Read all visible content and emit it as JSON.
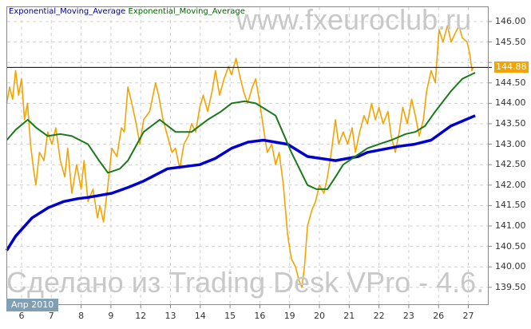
{
  "chart_data": {
    "type": "line",
    "title": "",
    "legend": [
      {
        "label": "Exponential_Moving_Average",
        "color": "#000080"
      },
      {
        "label": "Exponential_Moving_Average",
        "color": "#006400"
      }
    ],
    "watermarks": [
      "www.fxeuroclub.ru",
      "Сделано из Trading Desk VPro - 4.6."
    ],
    "month_label": "Апр 2010",
    "x_ticks": [
      "6",
      "7",
      "8",
      "9",
      "12",
      "13",
      "14",
      "15",
      "16",
      "19",
      "20",
      "21",
      "22",
      "23",
      "26",
      "27"
    ],
    "y_ticks": [
      "146.00",
      "145.50",
      "145.00",
      "144.50",
      "144.00",
      "143.50",
      "143.00",
      "142.50",
      "142.00",
      "141.50",
      "141.00",
      "140.50",
      "140.00",
      "139.50"
    ],
    "ylim": [
      139.13,
      146.37
    ],
    "xlim": [
      -0.51,
      15.7
    ],
    "last_price": "144.88",
    "colors": {
      "price": "#f5a300",
      "ema_slow": "#0000cc",
      "ema_fast": "#1a7a1a",
      "last_line": "#000000"
    },
    "series": [
      {
        "name": "Price",
        "points": [
          [
            -0.5,
            144.0
          ],
          [
            -0.4,
            144.4
          ],
          [
            -0.3,
            144.1
          ],
          [
            -0.2,
            144.8
          ],
          [
            -0.1,
            144.2
          ],
          [
            0.0,
            144.6
          ],
          [
            0.1,
            143.6
          ],
          [
            0.2,
            144.0
          ],
          [
            0.3,
            143.0
          ],
          [
            0.4,
            142.4
          ],
          [
            0.48,
            142.0
          ],
          [
            0.6,
            142.8
          ],
          [
            0.75,
            142.6
          ],
          [
            0.88,
            143.3
          ],
          [
            1.02,
            143.0
          ],
          [
            1.15,
            143.4
          ],
          [
            1.3,
            142.6
          ],
          [
            1.45,
            142.2
          ],
          [
            1.55,
            142.9
          ],
          [
            1.69,
            141.8
          ],
          [
            1.85,
            142.5
          ],
          [
            2.0,
            141.9
          ],
          [
            2.1,
            142.6
          ],
          [
            2.23,
            141.6
          ],
          [
            2.4,
            141.9
          ],
          [
            2.55,
            141.2
          ],
          [
            2.63,
            141.5
          ],
          [
            2.75,
            141.1
          ],
          [
            2.9,
            142.0
          ],
          [
            3.03,
            142.9
          ],
          [
            3.2,
            142.7
          ],
          [
            3.35,
            143.4
          ],
          [
            3.45,
            143.3
          ],
          [
            3.57,
            144.4
          ],
          [
            3.7,
            144.0
          ],
          [
            3.85,
            143.5
          ],
          [
            3.97,
            143.0
          ],
          [
            4.1,
            143.6
          ],
          [
            4.3,
            143.8
          ],
          [
            4.5,
            144.5
          ],
          [
            4.6,
            144.2
          ],
          [
            4.75,
            143.6
          ],
          [
            4.9,
            143.2
          ],
          [
            5.05,
            142.8
          ],
          [
            5.17,
            142.9
          ],
          [
            5.31,
            142.4
          ],
          [
            5.45,
            143.0
          ],
          [
            5.6,
            143.2
          ],
          [
            5.71,
            143.5
          ],
          [
            5.85,
            143.3
          ],
          [
            5.98,
            143.9
          ],
          [
            6.1,
            144.2
          ],
          [
            6.25,
            143.8
          ],
          [
            6.4,
            144.3
          ],
          [
            6.51,
            144.8
          ],
          [
            6.65,
            144.2
          ],
          [
            6.8,
            144.6
          ],
          [
            6.95,
            144.9
          ],
          [
            7.05,
            144.7
          ],
          [
            7.2,
            145.1
          ],
          [
            7.32,
            144.7
          ],
          [
            7.45,
            144.3
          ],
          [
            7.59,
            144.0
          ],
          [
            7.75,
            144.4
          ],
          [
            7.86,
            144.6
          ],
          [
            8.0,
            144.0
          ],
          [
            8.12,
            143.4
          ],
          [
            8.25,
            142.8
          ],
          [
            8.4,
            143.0
          ],
          [
            8.53,
            142.5
          ],
          [
            8.65,
            142.8
          ],
          [
            8.79,
            142.0
          ],
          [
            8.93,
            140.8
          ],
          [
            9.06,
            140.2
          ],
          [
            9.2,
            140.0
          ],
          [
            9.3,
            139.7
          ],
          [
            9.41,
            139.5
          ],
          [
            9.5,
            140.0
          ],
          [
            9.6,
            141.0
          ],
          [
            9.75,
            141.4
          ],
          [
            9.87,
            141.6
          ],
          [
            10.0,
            142.0
          ],
          [
            10.15,
            141.8
          ],
          [
            10.27,
            142.2
          ],
          [
            10.4,
            142.8
          ],
          [
            10.54,
            143.6
          ],
          [
            10.65,
            143.0
          ],
          [
            10.8,
            143.3
          ],
          [
            10.95,
            143.0
          ],
          [
            11.1,
            143.4
          ],
          [
            11.21,
            142.8
          ],
          [
            11.35,
            143.3
          ],
          [
            11.5,
            143.7
          ],
          [
            11.61,
            143.5
          ],
          [
            11.75,
            144.0
          ],
          [
            11.88,
            143.6
          ],
          [
            12.0,
            143.9
          ],
          [
            12.14,
            143.5
          ],
          [
            12.3,
            143.8
          ],
          [
            12.41,
            143.2
          ],
          [
            12.55,
            142.8
          ],
          [
            12.68,
            143.3
          ],
          [
            12.8,
            143.9
          ],
          [
            12.95,
            143.5
          ],
          [
            13.1,
            144.1
          ],
          [
            13.22,
            143.7
          ],
          [
            13.35,
            143.2
          ],
          [
            13.49,
            143.6
          ],
          [
            13.6,
            144.3
          ],
          [
            13.75,
            144.8
          ],
          [
            13.89,
            144.5
          ],
          [
            14.02,
            145.8
          ],
          [
            14.15,
            145.5
          ],
          [
            14.3,
            145.9
          ],
          [
            14.42,
            145.5
          ],
          [
            14.55,
            145.7
          ],
          [
            14.69,
            145.9
          ],
          [
            14.8,
            145.6
          ],
          [
            14.96,
            145.5
          ],
          [
            15.05,
            145.2
          ],
          [
            15.12,
            144.8
          ],
          [
            15.17,
            144.88
          ]
        ]
      },
      {
        "name": "Exponential_Moving_Average (fast)",
        "points": [
          [
            -0.5,
            143.1
          ],
          [
            -0.2,
            143.35
          ],
          [
            0.21,
            143.6
          ],
          [
            0.5,
            143.4
          ],
          [
            0.88,
            143.2
          ],
          [
            1.3,
            143.25
          ],
          [
            1.69,
            143.2
          ],
          [
            2.23,
            143.0
          ],
          [
            2.6,
            142.6
          ],
          [
            2.9,
            142.3
          ],
          [
            3.3,
            142.4
          ],
          [
            3.57,
            142.6
          ],
          [
            4.1,
            143.3
          ],
          [
            4.64,
            143.6
          ],
          [
            5.17,
            143.3
          ],
          [
            5.71,
            143.3
          ],
          [
            6.25,
            143.6
          ],
          [
            6.7,
            143.8
          ],
          [
            7.05,
            144.0
          ],
          [
            7.5,
            144.05
          ],
          [
            7.86,
            144.0
          ],
          [
            8.2,
            143.85
          ],
          [
            8.53,
            143.7
          ],
          [
            9.06,
            142.8
          ],
          [
            9.6,
            142.0
          ],
          [
            9.9,
            141.9
          ],
          [
            10.27,
            141.9
          ],
          [
            10.54,
            142.2
          ],
          [
            10.8,
            142.5
          ],
          [
            11.2,
            142.7
          ],
          [
            11.61,
            142.9
          ],
          [
            12.0,
            143.0
          ],
          [
            12.41,
            143.1
          ],
          [
            12.9,
            143.25
          ],
          [
            13.22,
            143.3
          ],
          [
            13.55,
            143.45
          ],
          [
            13.89,
            143.8
          ],
          [
            14.42,
            144.3
          ],
          [
            14.8,
            144.6
          ],
          [
            15.23,
            144.75
          ]
        ]
      },
      {
        "name": "Exponential_Moving_Average (slow)",
        "points": [
          [
            -0.5,
            140.4
          ],
          [
            -0.2,
            140.75
          ],
          [
            0.35,
            141.2
          ],
          [
            0.9,
            141.45
          ],
          [
            1.42,
            141.6
          ],
          [
            1.9,
            141.67
          ],
          [
            2.23,
            141.7
          ],
          [
            3.03,
            141.8
          ],
          [
            3.6,
            141.95
          ],
          [
            4.1,
            142.1
          ],
          [
            4.9,
            142.4
          ],
          [
            5.98,
            142.5
          ],
          [
            6.5,
            142.65
          ],
          [
            7.05,
            142.9
          ],
          [
            7.6,
            143.05
          ],
          [
            8.12,
            143.1
          ],
          [
            8.93,
            143.0
          ],
          [
            9.6,
            142.7
          ],
          [
            10.54,
            142.6
          ],
          [
            11.3,
            142.7
          ],
          [
            11.61,
            142.8
          ],
          [
            12.68,
            142.95
          ],
          [
            13.2,
            143.0
          ],
          [
            13.75,
            143.1
          ],
          [
            14.42,
            143.45
          ],
          [
            15.23,
            143.7
          ]
        ]
      }
    ]
  }
}
